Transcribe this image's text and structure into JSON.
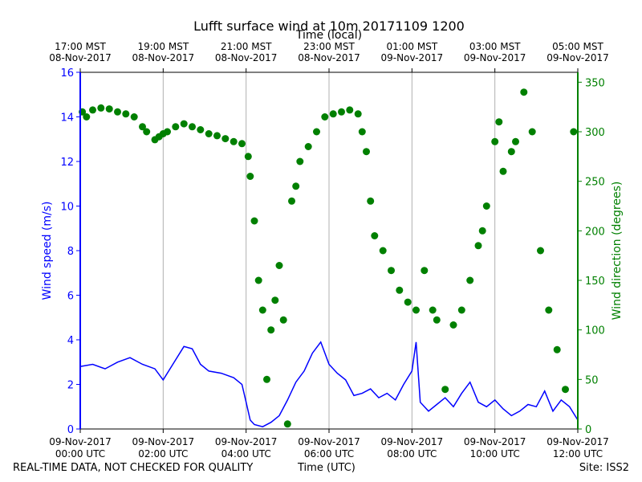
{
  "chart_data": {
    "type": "line",
    "title": "Lufft surface wind at 10m 20171109 1200",
    "top_axis_label": "Time (local)",
    "xlabel": "Time (UTC)",
    "ylabel_left": "Wind speed (m/s)",
    "ylabel_right": "Wind direction (degrees)",
    "x_range_hours_utc": [
      0,
      12
    ],
    "ylim_left": [
      0,
      16
    ],
    "ylim_right": [
      0,
      360
    ],
    "left_ticks": [
      "0",
      "2",
      "4",
      "6",
      "8",
      "10",
      "12",
      "14",
      "16"
    ],
    "right_ticks": [
      "0",
      "50",
      "100",
      "150",
      "200",
      "250",
      "300",
      "350"
    ],
    "bottom_ticks": [
      {
        "hour": 0,
        "line1": "09-Nov-2017",
        "line2": "00:00 UTC"
      },
      {
        "hour": 2,
        "line1": "09-Nov-2017",
        "line2": "02:00 UTC"
      },
      {
        "hour": 4,
        "line1": "09-Nov-2017",
        "line2": "04:00 UTC"
      },
      {
        "hour": 6,
        "line1": "09-Nov-2017",
        "line2": "06:00 UTC"
      },
      {
        "hour": 8,
        "line1": "09-Nov-2017",
        "line2": "08:00 UTC"
      },
      {
        "hour": 10,
        "line1": "09-Nov-2017",
        "line2": "10:00 UTC"
      },
      {
        "hour": 12,
        "line1": "09-Nov-2017",
        "line2": "12:00 UTC"
      }
    ],
    "top_ticks": [
      {
        "hour": 0,
        "line1": "17:00 MST",
        "line2": "08-Nov-2017"
      },
      {
        "hour": 2,
        "line1": "19:00 MST",
        "line2": "08-Nov-2017"
      },
      {
        "hour": 4,
        "line1": "21:00 MST",
        "line2": "08-Nov-2017"
      },
      {
        "hour": 6,
        "line1": "23:00 MST",
        "line2": "08-Nov-2017"
      },
      {
        "hour": 8,
        "line1": "01:00 MST",
        "line2": "09-Nov-2017"
      },
      {
        "hour": 10,
        "line1": "03:00 MST",
        "line2": "09-Nov-2017"
      },
      {
        "hour": 12,
        "line1": "05:00 MST",
        "line2": "09-Nov-2017"
      }
    ],
    "series": [
      {
        "name": "Wind speed",
        "axis": "left",
        "style": "line",
        "color": "#0000ff",
        "x_hours": [
          0,
          0.3,
          0.6,
          0.9,
          1.2,
          1.5,
          1.8,
          2.0,
          2.3,
          2.5,
          2.7,
          2.9,
          3.1,
          3.4,
          3.7,
          3.9,
          4.0,
          4.1,
          4.2,
          4.4,
          4.6,
          4.8,
          5.0,
          5.2,
          5.4,
          5.6,
          5.8,
          6.0,
          6.2,
          6.4,
          6.6,
          6.8,
          7.0,
          7.2,
          7.4,
          7.6,
          7.8,
          8.0,
          8.1,
          8.2,
          8.4,
          8.6,
          8.8,
          9.0,
          9.2,
          9.4,
          9.6,
          9.8,
          10.0,
          10.2,
          10.4,
          10.6,
          10.8,
          11.0,
          11.2,
          11.4,
          11.6,
          11.8,
          12.0
        ],
        "values": [
          2.8,
          2.9,
          2.7,
          3.0,
          3.2,
          2.9,
          2.7,
          2.2,
          3.1,
          3.7,
          3.6,
          2.9,
          2.6,
          2.5,
          2.3,
          2.0,
          1.2,
          0.4,
          0.2,
          0.1,
          0.3,
          0.6,
          1.3,
          2.1,
          2.6,
          3.4,
          3.9,
          2.9,
          2.5,
          2.2,
          1.5,
          1.6,
          1.8,
          1.4,
          1.6,
          1.3,
          2.0,
          2.6,
          3.9,
          1.2,
          0.8,
          1.1,
          1.4,
          1.0,
          1.6,
          2.1,
          1.2,
          1.0,
          1.3,
          0.9,
          0.6,
          0.8,
          1.1,
          1.0,
          1.7,
          0.8,
          1.3,
          1.0,
          0.4
        ]
      },
      {
        "name": "Wind direction",
        "axis": "right",
        "style": "scatter",
        "color": "#008000",
        "x_hours": [
          0.05,
          0.15,
          0.3,
          0.5,
          0.7,
          0.9,
          1.1,
          1.3,
          1.5,
          1.6,
          1.8,
          1.9,
          2.0,
          2.1,
          2.3,
          2.5,
          2.7,
          2.9,
          3.1,
          3.3,
          3.5,
          3.7,
          3.9,
          4.05,
          4.1,
          4.2,
          4.3,
          4.4,
          4.5,
          4.6,
          4.7,
          4.8,
          4.9,
          5.0,
          5.1,
          5.2,
          5.3,
          5.5,
          5.7,
          5.9,
          6.1,
          6.3,
          6.5,
          6.7,
          6.8,
          6.9,
          7.0,
          7.1,
          7.3,
          7.5,
          7.7,
          7.9,
          8.1,
          8.3,
          8.5,
          8.6,
          8.8,
          9.0,
          9.2,
          9.4,
          9.6,
          9.7,
          9.8,
          10.0,
          10.1,
          10.2,
          10.4,
          10.5,
          10.7,
          10.9,
          11.1,
          11.3,
          11.5,
          11.7,
          11.9
        ],
        "values": [
          320,
          315,
          322,
          324,
          323,
          320,
          318,
          315,
          305,
          300,
          292,
          295,
          298,
          300,
          305,
          308,
          305,
          302,
          298,
          296,
          293,
          290,
          288,
          275,
          255,
          210,
          150,
          120,
          50,
          100,
          130,
          165,
          110,
          5,
          230,
          245,
          270,
          285,
          300,
          315,
          318,
          320,
          322,
          318,
          300,
          280,
          230,
          195,
          180,
          160,
          140,
          128,
          120,
          160,
          120,
          110,
          40,
          105,
          120,
          150,
          185,
          200,
          225,
          290,
          310,
          260,
          280,
          290,
          340,
          300,
          180,
          120,
          80,
          40,
          300
        ]
      }
    ]
  },
  "footer": {
    "left": "REAL-TIME DATA, NOT CHECKED FOR QUALITY",
    "center": "Time (UTC)",
    "right": "Site: ISS2"
  },
  "colors": {
    "speed": "#0000ff",
    "direction": "#008000",
    "grid": "#b0b0b0"
  }
}
